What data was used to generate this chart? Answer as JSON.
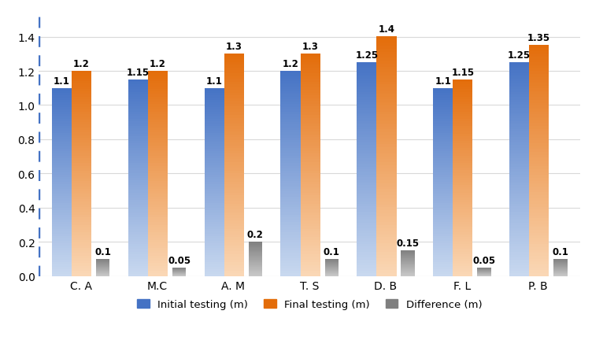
{
  "categories": [
    "C. A",
    "M.C",
    "A. M",
    "T. S",
    "D. B",
    "F. L",
    "P. B"
  ],
  "initial": [
    1.1,
    1.15,
    1.1,
    1.2,
    1.25,
    1.1,
    1.25
  ],
  "final": [
    1.2,
    1.2,
    1.3,
    1.3,
    1.4,
    1.15,
    1.35
  ],
  "difference": [
    0.1,
    0.05,
    0.2,
    0.1,
    0.15,
    0.05,
    0.1
  ],
  "initial_label": "Initial testing (m)",
  "final_label": "Final testing (m)",
  "difference_label": "Difference (m)",
  "ylim": [
    0,
    1.55
  ],
  "yticks": [
    0,
    0.2,
    0.4,
    0.6,
    0.8,
    1.0,
    1.2,
    1.4
  ],
  "bar_width": 0.25,
  "color_initial_top": "#4472c4",
  "color_initial_bottom": "#c8d8ef",
  "color_final_top": "#e36c09",
  "color_final_bottom": "#fad7b5",
  "color_diff_top": "#7f7f7f",
  "color_diff_bottom": "#c8c8c8",
  "left_border_color": "#4472c4",
  "grid_color": "#d9d9d9",
  "background_color": "#ffffff",
  "label_fontsize": 8.5,
  "tick_fontsize": 10
}
